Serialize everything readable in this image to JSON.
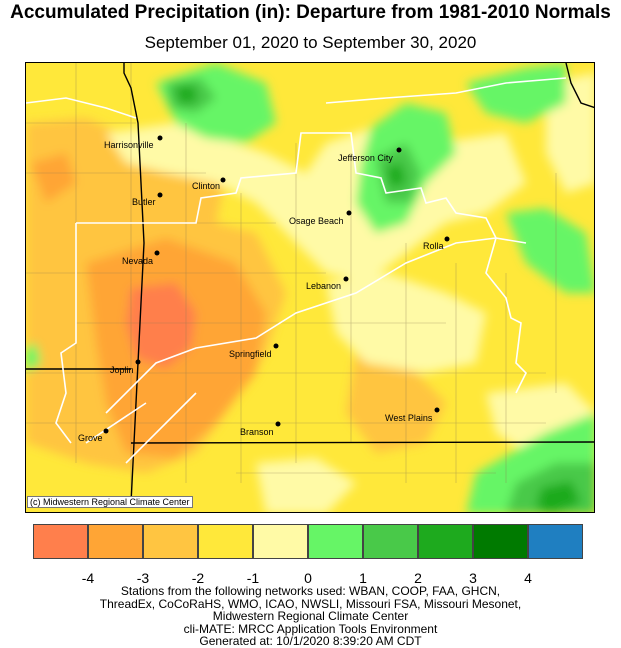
{
  "title": "Accumulated Precipitation (in): Departure from 1981-2010 Normals",
  "subtitle": "September 01, 2020 to September 30, 2020",
  "map": {
    "credit": "(c) Midwestern Regional Climate Center",
    "cities": [
      {
        "name": "Harrisonville",
        "lx": 2.0,
        "ly": 7.5
      },
      {
        "name": "Clinton",
        "lx": 19.6,
        "ly": 6.9
      },
      {
        "name": "Butler",
        "lx": 3.8,
        "ly": 5.9
      },
      {
        "name": "Jefferson City",
        "lx": 7.7,
        "ly": 18.9
      },
      {
        "name": "Osage Beach",
        "lx": 7.5,
        "ly": 17.0
      },
      {
        "name": "Rolla",
        "lx": 8.0,
        "ly": 21.4
      },
      {
        "name": "Nevada",
        "lx": 3.6,
        "ly": 14.8
      },
      {
        "name": "Lebanon",
        "lx": 1.9,
        "ly": 24.9
      },
      {
        "name": "Joplin",
        "lx": 5.8,
        "ly": 20.3
      },
      {
        "name": "Springfield",
        "lx": 2.2,
        "ly": 22.6
      },
      {
        "name": "West Plains",
        "lx": 5.3,
        "ly": 24.1
      },
      {
        "name": "Branson",
        "lx": 6.8,
        "ly": 12.0
      },
      {
        "name": "Grove",
        "lx": 4.3,
        "ly": 20.4
      }
    ]
  },
  "legend": {
    "colors": [
      "#ff7f4c",
      "#ffa535",
      "#ffc541",
      "#ffe83a",
      "#fffaa6",
      "#66f566",
      "#49c949",
      "#1eaa1e",
      "#007a00",
      "#1f7fc1"
    ],
    "ticks": [
      "-4",
      "-3",
      "-2",
      "-1",
      "0",
      "1",
      "2",
      "3",
      "4"
    ]
  },
  "footer": [
    "Stations from the following networks used: WBAN, COOP, FAA, GHCN,",
    "ThreadEx, CoCoRaHS, WMO, ICAO, NWSLI, Missouri FSA, Missouri Mesonet,",
    "Midwestern Regional Climate Center",
    "cli-MATE: MRCC Application Tools Environment",
    "Generated at: 10/1/2020 8:39:20 AM CDT"
  ]
}
